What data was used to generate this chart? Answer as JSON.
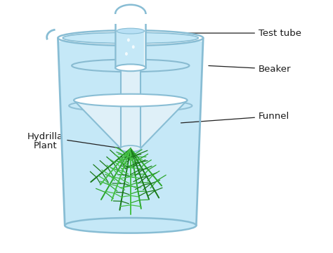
{
  "background_color": "#ffffff",
  "water_color": "#c5e8f7",
  "glass_color": "#dff0f8",
  "glass_edge_color": "#88bdd4",
  "plant_green_dark": "#1a7a1a",
  "plant_green_mid": "#2da82d",
  "plant_green_light": "#45c045",
  "text_color": "#1a1a1a",
  "label_line_color": "#222222",
  "labels": {
    "test_tube": "Test tube",
    "beaker": "Beaker",
    "funnel": "Funnel",
    "plant_line1": "Hydrilla",
    "plant_line2": "Plant"
  },
  "figsize": [
    4.74,
    3.6
  ],
  "dpi": 100
}
